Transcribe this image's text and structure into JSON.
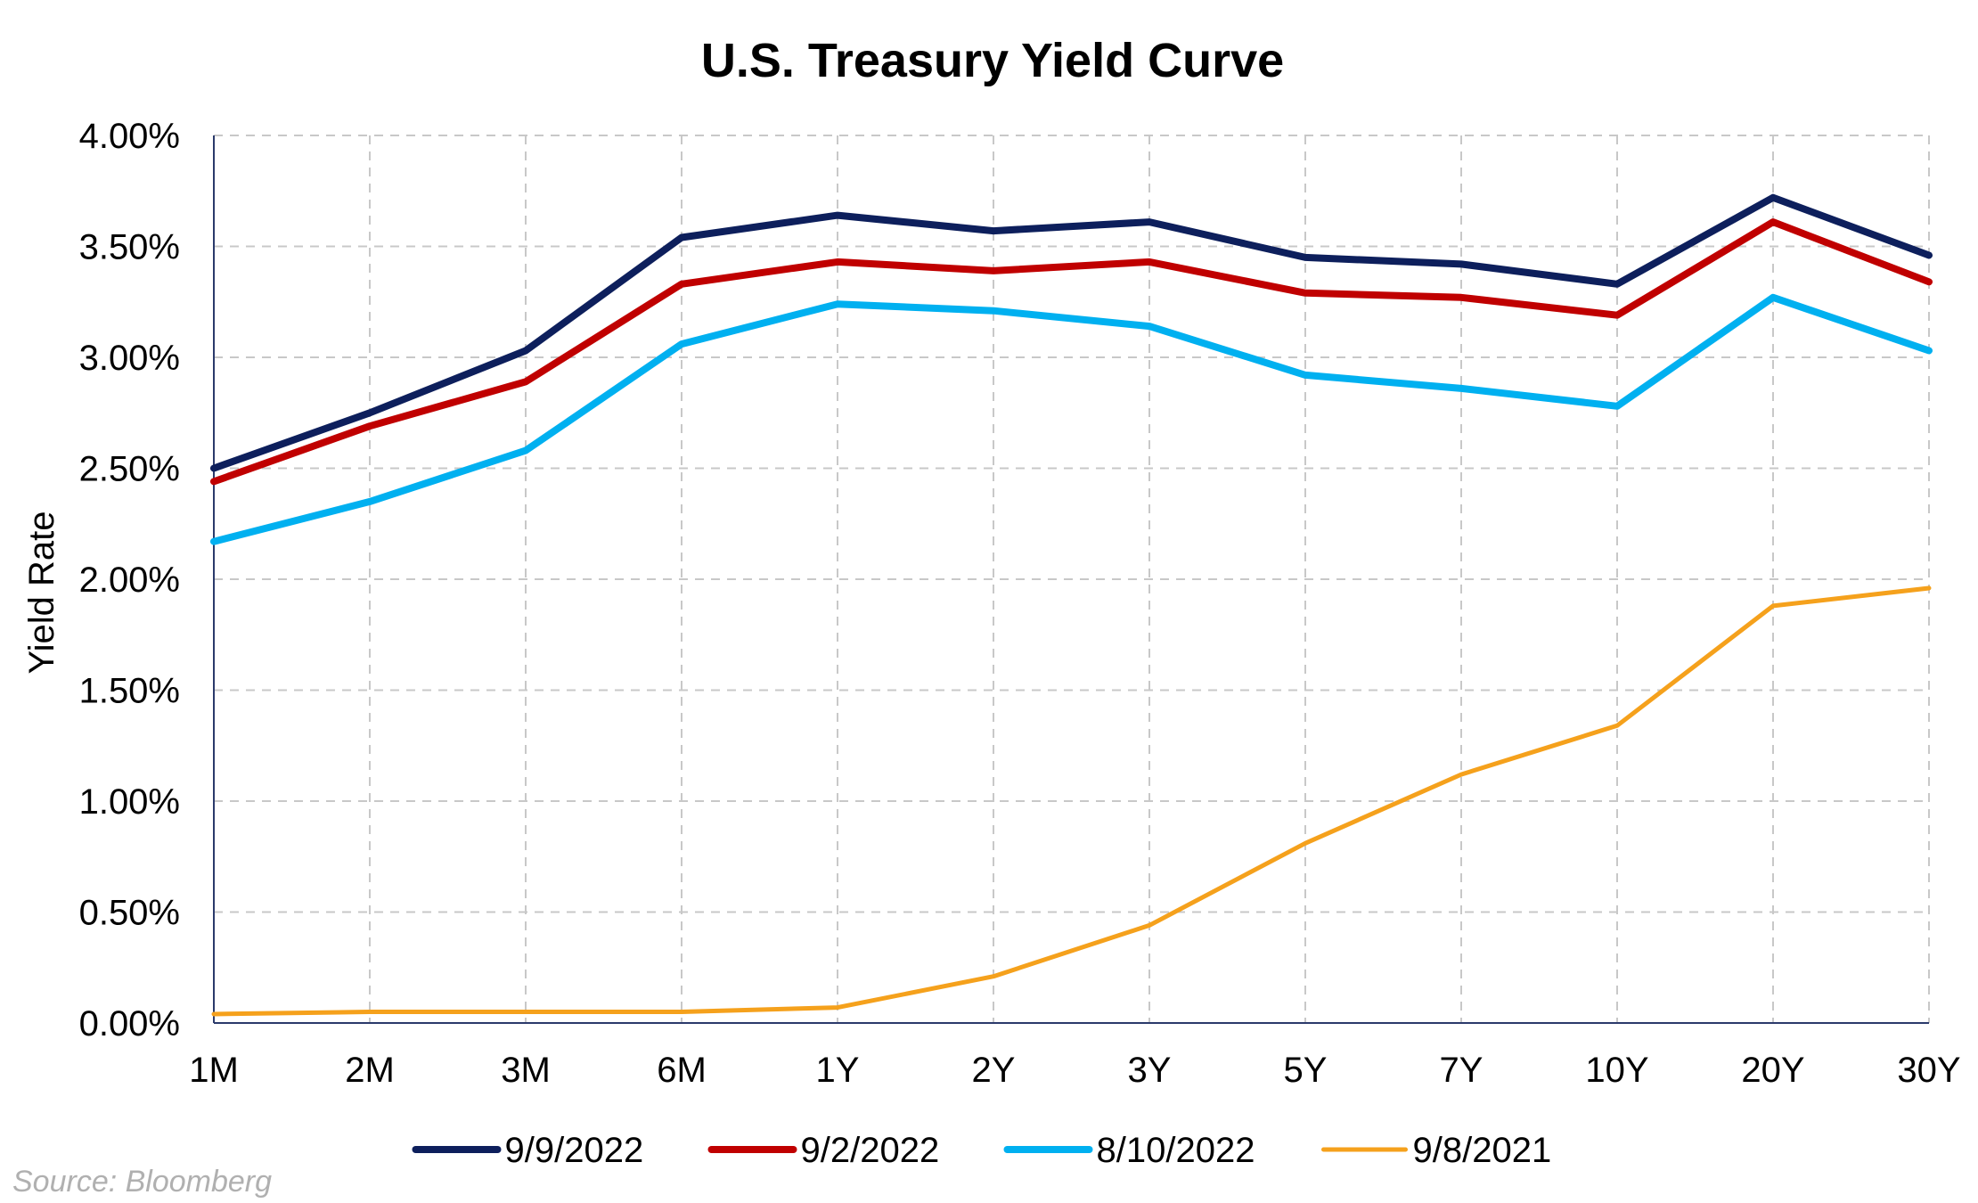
{
  "chart_data": {
    "type": "line",
    "title": "U.S. Treasury Yield Curve",
    "xlabel": "",
    "ylabel": "Yield Rate",
    "categories": [
      "1M",
      "2M",
      "3M",
      "6M",
      "1Y",
      "2Y",
      "3Y",
      "5Y",
      "7Y",
      "10Y",
      "20Y",
      "30Y"
    ],
    "ylim": [
      0,
      4.0
    ],
    "yticks": [
      0,
      0.5,
      1.0,
      1.5,
      2.0,
      2.5,
      3.0,
      3.5,
      4.0
    ],
    "ytick_labels": [
      "0.00%",
      "0.50%",
      "1.00%",
      "1.50%",
      "2.00%",
      "2.50%",
      "3.00%",
      "3.50%",
      "4.00%"
    ],
    "grid": true,
    "legend_position": "bottom",
    "series": [
      {
        "name": "9/9/2022",
        "color": "#0d1f5c",
        "values": [
          2.5,
          2.75,
          3.03,
          3.54,
          3.64,
          3.57,
          3.61,
          3.45,
          3.42,
          3.33,
          3.72,
          3.46
        ]
      },
      {
        "name": "9/2/2022",
        "color": "#c00000",
        "values": [
          2.44,
          2.69,
          2.89,
          3.33,
          3.43,
          3.39,
          3.43,
          3.29,
          3.27,
          3.19,
          3.61,
          3.34
        ]
      },
      {
        "name": "8/10/2022",
        "color": "#00b0f0",
        "values": [
          2.17,
          2.35,
          2.58,
          3.06,
          3.24,
          3.21,
          3.14,
          2.92,
          2.86,
          2.78,
          3.27,
          3.03
        ]
      },
      {
        "name": "9/8/2021",
        "color": "#f5a11c",
        "values": [
          0.04,
          0.05,
          0.05,
          0.05,
          0.07,
          0.21,
          0.44,
          0.81,
          1.12,
          1.34,
          1.88,
          1.96
        ]
      }
    ],
    "source": "Source: Bloomberg"
  }
}
